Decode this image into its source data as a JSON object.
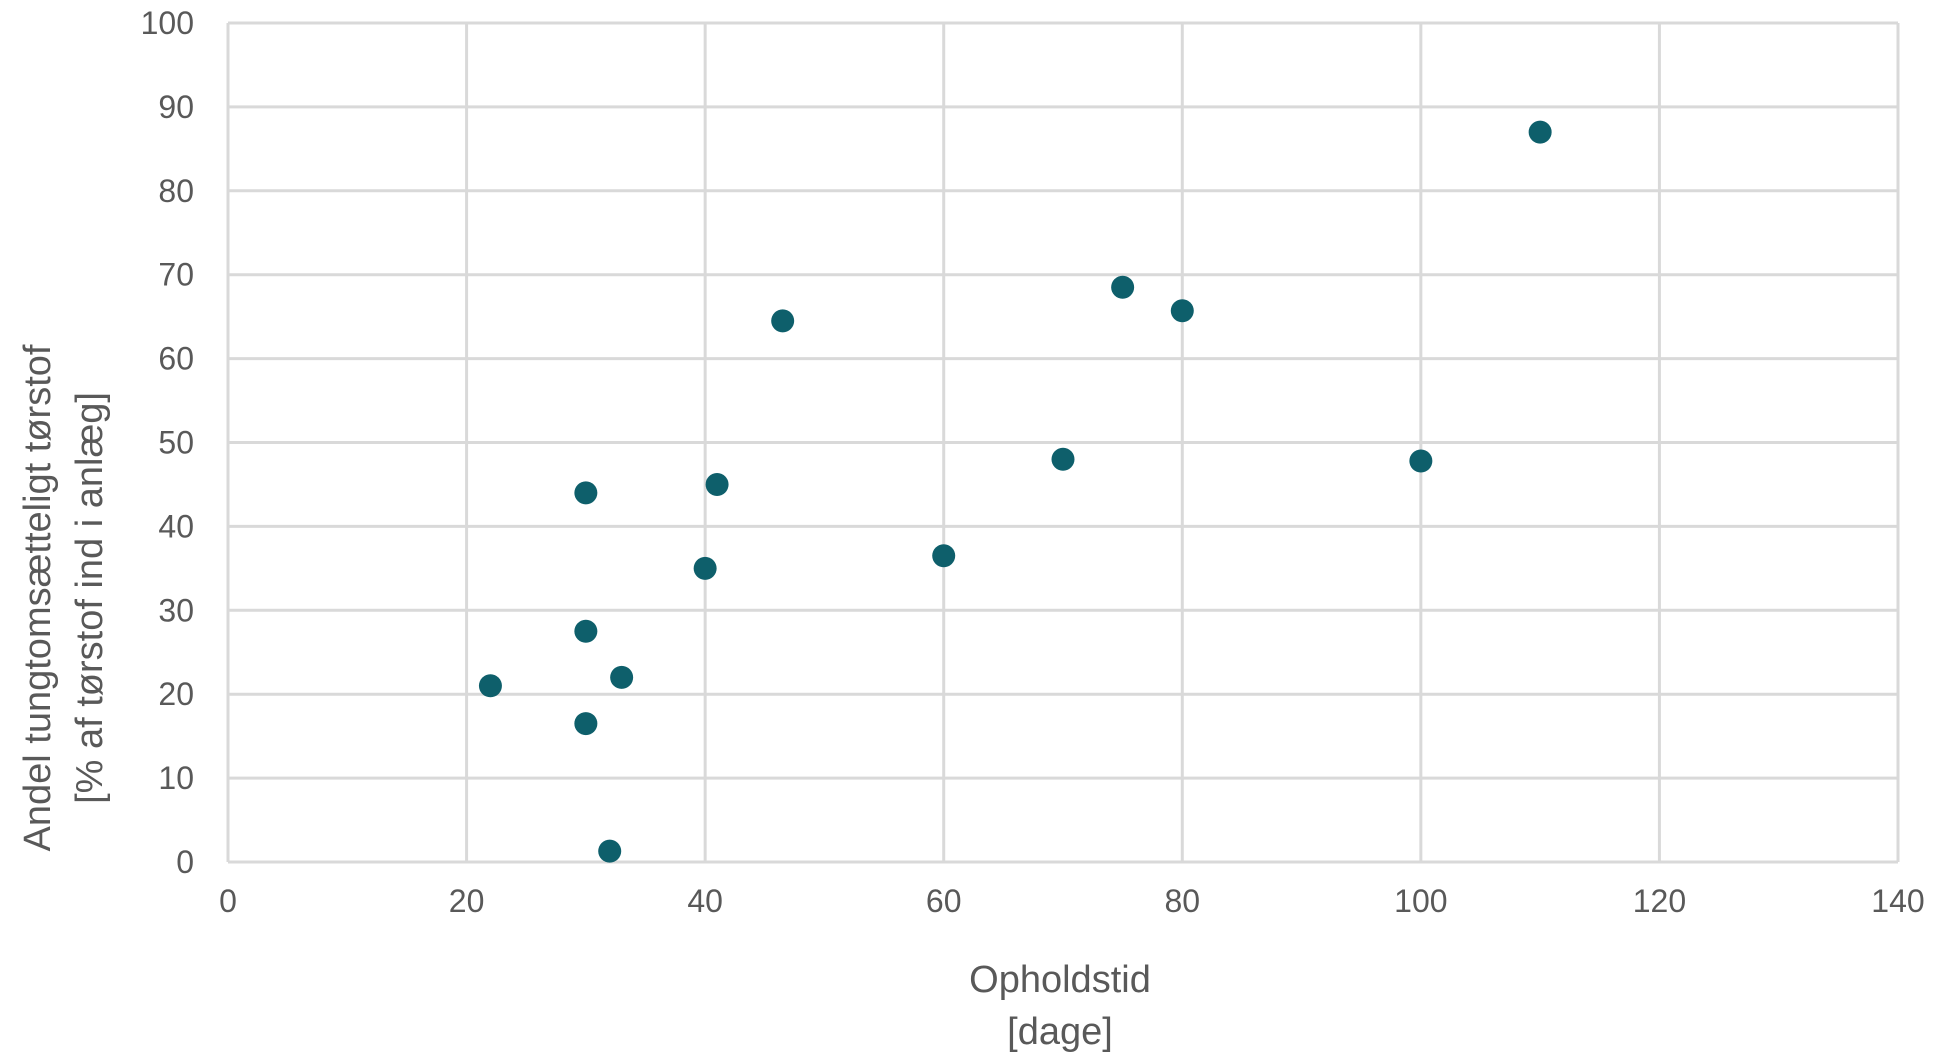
{
  "chart_data": {
    "type": "scatter",
    "xlabel": [
      "Opholdstid",
      "[dage]"
    ],
    "ylabel": [
      "Andel tungtomsætteligt tørstof",
      "[% af tørstof ind i anlæg]"
    ],
    "xlim": [
      0,
      140
    ],
    "ylim": [
      0,
      100
    ],
    "x_ticks": [
      0,
      20,
      40,
      60,
      80,
      100,
      120,
      140
    ],
    "y_ticks": [
      0,
      10,
      20,
      30,
      40,
      50,
      60,
      70,
      80,
      90,
      100
    ],
    "grid": true,
    "legend": "none",
    "marker_color": "#0e5f6b",
    "points": [
      {
        "x": 22,
        "y": 21
      },
      {
        "x": 30,
        "y": 44
      },
      {
        "x": 30,
        "y": 27.5
      },
      {
        "x": 30,
        "y": 16.5
      },
      {
        "x": 32,
        "y": 1.3
      },
      {
        "x": 33,
        "y": 22
      },
      {
        "x": 40,
        "y": 35
      },
      {
        "x": 41,
        "y": 45
      },
      {
        "x": 46.5,
        "y": 64.5
      },
      {
        "x": 60,
        "y": 36.5
      },
      {
        "x": 70,
        "y": 48
      },
      {
        "x": 75,
        "y": 68.5
      },
      {
        "x": 80,
        "y": 65.7
      },
      {
        "x": 100,
        "y": 47.8
      },
      {
        "x": 110,
        "y": 87
      }
    ]
  }
}
